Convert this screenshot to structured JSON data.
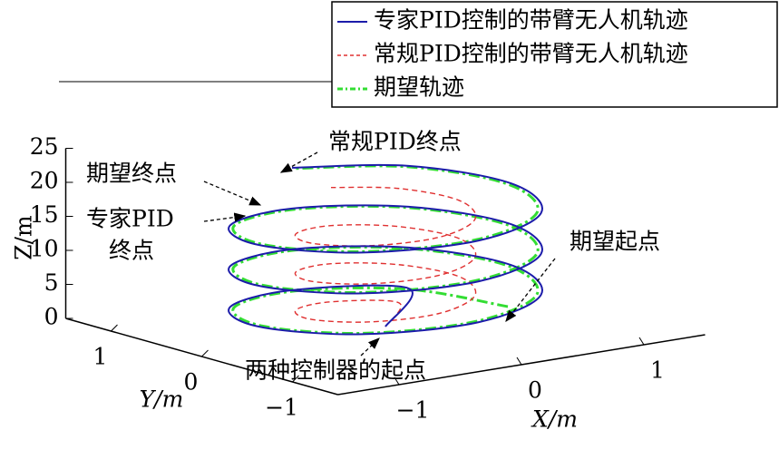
{
  "chart_data": {
    "type": "line3d",
    "xlabel": "X/m",
    "ylabel": "Y/m",
    "zlabel": "Z/m",
    "xlim": [
      -1.5,
      1.5
    ],
    "ylim": [
      -1.5,
      1.5
    ],
    "zlim": [
      0,
      25
    ],
    "xticks": [
      {
        "value": -1,
        "label": "−1"
      },
      0,
      1
    ],
    "yticks": [
      {
        "value": -1,
        "label": "−1"
      },
      0,
      1
    ],
    "zticks": [
      0,
      5,
      10,
      15,
      20,
      25
    ],
    "series": [
      {
        "name": "专家PID控制的带臂无人机轨迹",
        "color": "#1c1caa",
        "style": "solid",
        "x": [
          0,
          0.73,
          0,
          -0.73,
          -1.03,
          -0.73,
          0,
          0.73,
          1.03,
          0.73,
          0,
          -0.73,
          -1.03,
          -0.73,
          0,
          0.73,
          1.03,
          0.73,
          0,
          -0.73,
          -1.03,
          -0.73,
          0,
          0.73,
          1.03,
          0.73,
          0
        ],
        "y": [
          0,
          0.73,
          1.03,
          0.73,
          0,
          -0.73,
          -1.03,
          -0.73,
          0,
          0.73,
          1.03,
          0.73,
          0,
          -0.73,
          -1.03,
          -0.73,
          0,
          0.73,
          1.03,
          0.73,
          0,
          -0.73,
          -1.03,
          -0.73,
          0,
          0.73,
          1.03
        ],
        "z": [
          0,
          0.75,
          1.5,
          2.25,
          3,
          3.75,
          4.5,
          5.25,
          6,
          6.75,
          7.5,
          8.25,
          9,
          9.75,
          10.5,
          11.25,
          12,
          12.75,
          13.5,
          14.25,
          15,
          15.75,
          16.5,
          17.25,
          18,
          18.75,
          19.5
        ]
      },
      {
        "name": "常规PID控制的带臂无人机轨迹",
        "color": "#e03030",
        "style": "dashed",
        "x": [
          0,
          0.42,
          0,
          -0.42,
          -0.6,
          -0.42,
          0,
          0.42,
          0.6,
          0.42,
          0,
          -0.42,
          -0.6,
          -0.42,
          0,
          0.42,
          0.6,
          0.42,
          0,
          -0.42,
          -0.6,
          -0.42,
          0,
          0.42,
          0.6,
          0.42,
          0
        ],
        "y": [
          0,
          0.42,
          0.6,
          0.42,
          0,
          -0.42,
          -0.6,
          -0.42,
          0,
          0.42,
          0.6,
          0.42,
          0,
          -0.42,
          -0.6,
          -0.42,
          0,
          0.42,
          0.6,
          0.42,
          0,
          -0.42,
          -0.6,
          -0.42,
          0,
          0.42,
          0.6
        ],
        "z": [
          0,
          0.7,
          1.4,
          2.1,
          2.8,
          3.5,
          4.2,
          4.9,
          5.6,
          6.3,
          7,
          7.7,
          8.4,
          9.1,
          9.8,
          10.5,
          11.2,
          11.9,
          12.6,
          13.3,
          14,
          14.7,
          15.4,
          16.1,
          16.8,
          17.5,
          18.2
        ]
      },
      {
        "name": "期望轨迹",
        "color": "#33dd33",
        "style": "dashdot",
        "x": [
          1,
          0.71,
          0,
          -0.71,
          -1,
          -0.71,
          0,
          0.71,
          1,
          0.71,
          0,
          -0.71,
          -1,
          -0.71,
          0,
          0.71,
          1,
          0.71,
          0,
          -0.71,
          -1,
          -0.71,
          0,
          0.71,
          1,
          0.71,
          0
        ],
        "y": [
          0,
          0.71,
          1,
          0.71,
          0,
          -0.71,
          -1,
          -0.71,
          0,
          0.71,
          1,
          0.71,
          0,
          -0.71,
          -1,
          -0.71,
          0,
          0.71,
          1,
          0.71,
          0,
          -0.71,
          -1,
          -0.71,
          0,
          0.71,
          1
        ],
        "z": [
          0,
          0.75,
          1.5,
          2.25,
          3,
          3.75,
          4.5,
          5.25,
          6,
          6.75,
          7.5,
          8.25,
          9,
          9.75,
          10.5,
          11.25,
          12,
          12.75,
          13.5,
          14.25,
          15,
          15.75,
          16.5,
          17.25,
          18,
          18.75,
          19.5
        ]
      }
    ],
    "annotations": [
      "常规PID终点",
      "期望终点",
      [
        "专家PID",
        "终点"
      ],
      "期望起点",
      "两种控制器的起点"
    ]
  }
}
